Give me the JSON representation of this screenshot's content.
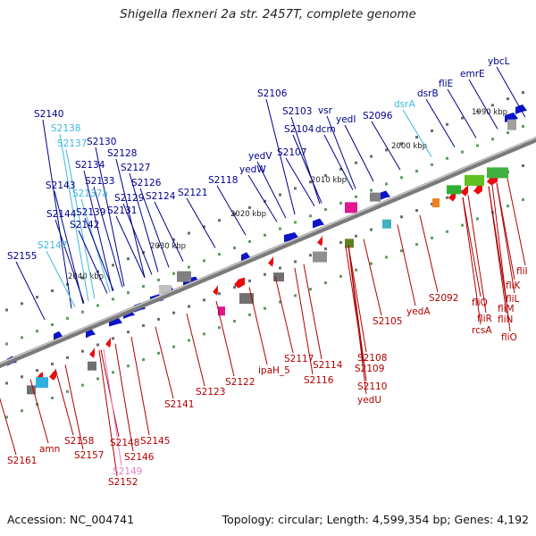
{
  "title": "Shigella flexneri 2a str. 2457T, complete genome",
  "accession": "Accession: NC_004741",
  "summary": "Topology: circular; Length: 4,599,354 bp; Genes: 4,192",
  "colors": {
    "forward_gene": "#0a14c8",
    "reverse_gene": "#e80c0c",
    "forward_label": "#00008b",
    "reverse_label": "#b00000",
    "pseudo_forward_label": "#40b8e0",
    "pseudo_reverse_label": "#e880c0",
    "backbone": "#808080"
  },
  "ticks": [
    "1990 kbp",
    "2000 kbp",
    "2010 kbp",
    "2020 kbp",
    "2030 kbp",
    "2040 kbp"
  ],
  "forward_labels": [
    "ybcL",
    "emrE",
    "fliE",
    "dsrB",
    "dsrA",
    "S2096",
    "yedI",
    "vsr",
    "dcm",
    "S2103",
    "S2104",
    "S2106",
    "S2107",
    "yedV",
    "yedW",
    "S2118",
    "S2121",
    "S2124",
    "S2126",
    "S2127",
    "S2128",
    "S2129",
    "S2130",
    "S2131",
    "S2133",
    "S2134",
    "S2137",
    "S2137a",
    "S2138",
    "S2139",
    "S2140",
    "S2142",
    "S2143",
    "S2144",
    "S2147",
    "S2155"
  ],
  "reverse_labels": [
    "fliI",
    "fliK",
    "fliL",
    "fliM",
    "fliN",
    "fliO",
    "fliQ",
    "fliR",
    "rcsA",
    "S2092",
    "yedA",
    "S2105",
    "S2108",
    "S2109",
    "S2110",
    "yedU",
    "S2114",
    "S2116",
    "S2117",
    "ipaH_5",
    "S2122",
    "S2123",
    "S2141",
    "S2145",
    "S2146",
    "S2148",
    "S2149",
    "S2152",
    "S2157",
    "S2158",
    "amn",
    "S2161"
  ]
}
